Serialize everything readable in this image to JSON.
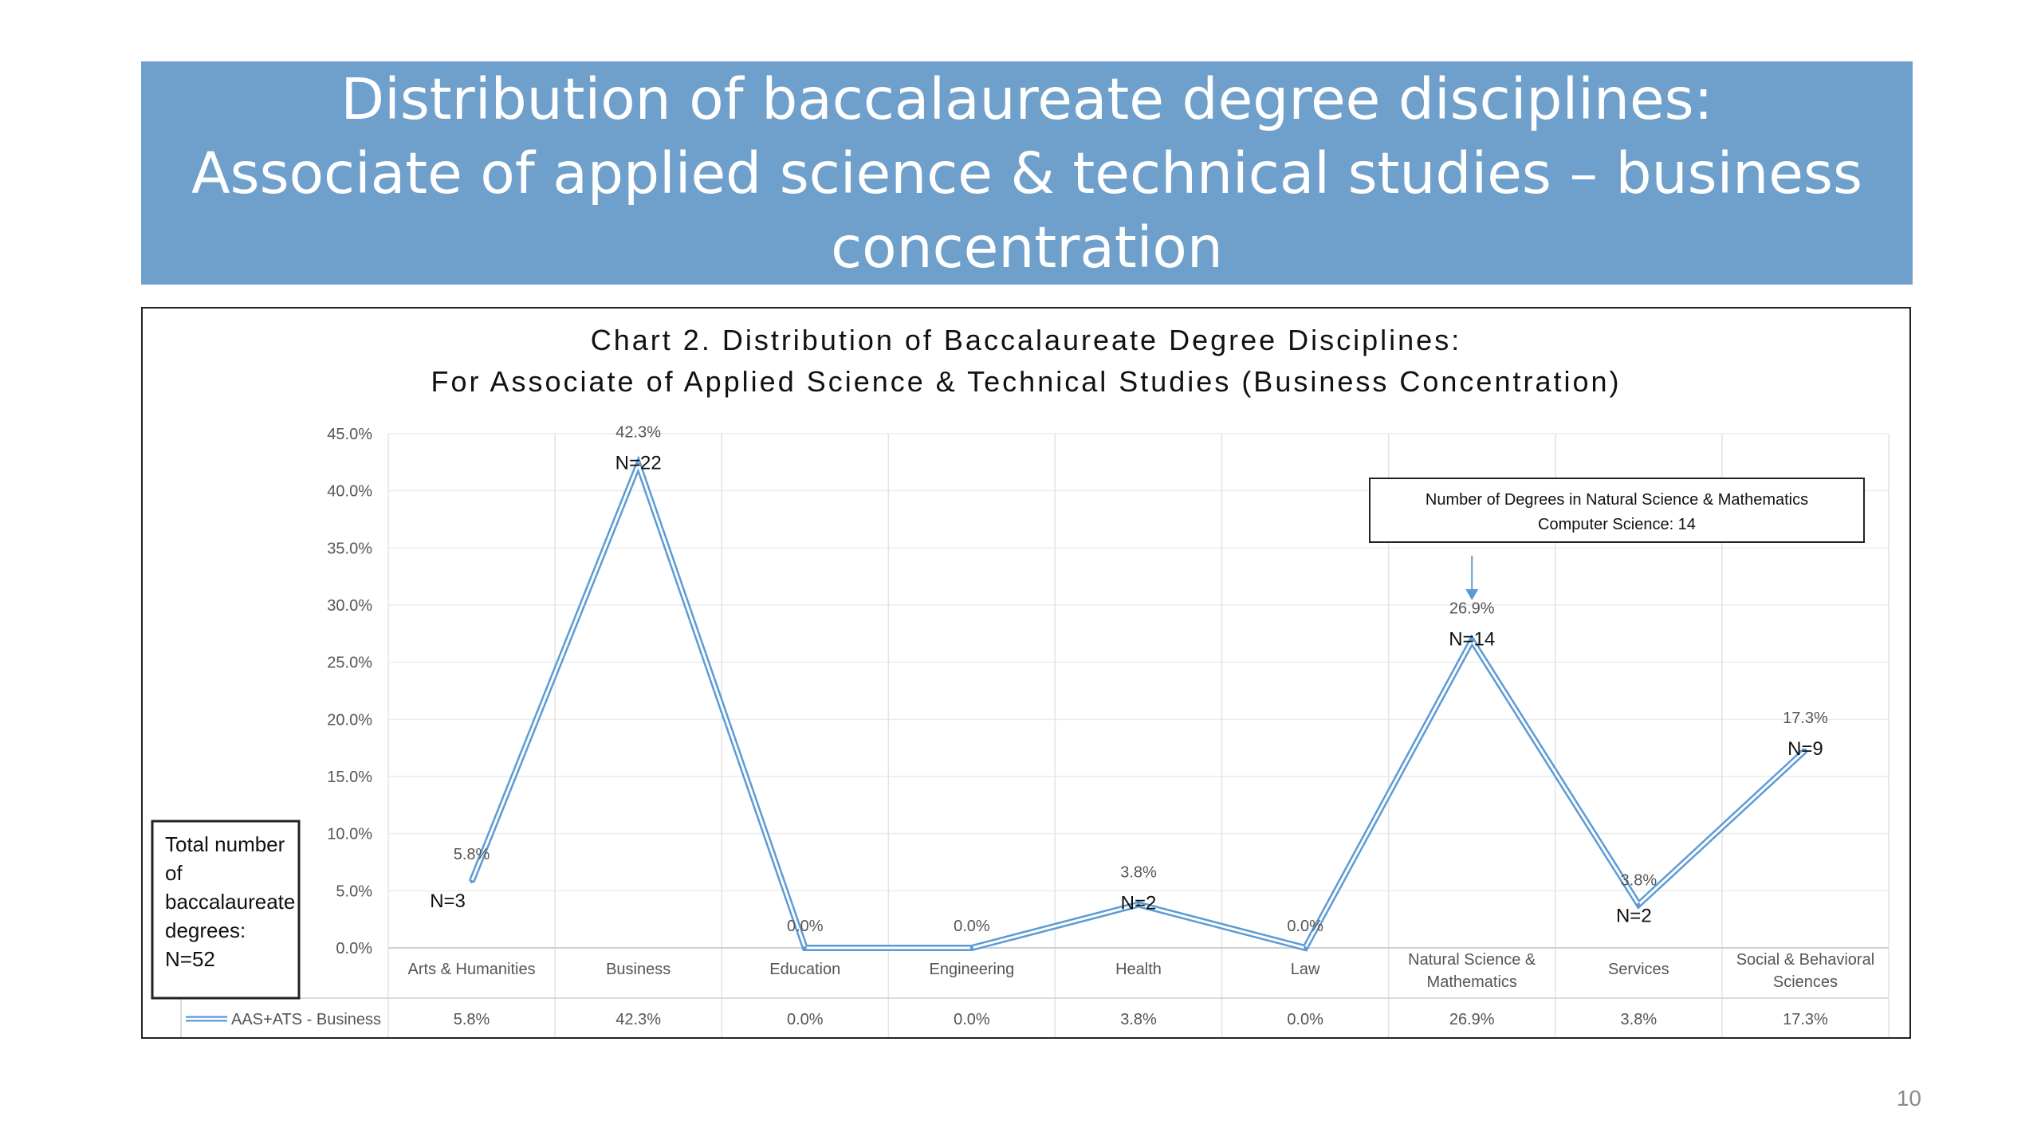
{
  "slide": {
    "title_lines": [
      "Distribution of baccalaureate degree disciplines:",
      "Associate of applied science & technical studies – business",
      "concentration"
    ],
    "page_number": "10"
  },
  "colors": {
    "banner": "#6fa0cc",
    "series_line": "#5b9bd5",
    "annotation_arrow": "#5b9bd5"
  },
  "chart_data": {
    "type": "line",
    "title_lines": [
      "Chart 2. Distribution of Baccalaureate Degree Disciplines:",
      "For Associate of Applied Science & Technical Studies (Business Concentration)"
    ],
    "categories": [
      [
        "Arts & Humanities"
      ],
      [
        "Business"
      ],
      [
        "Education"
      ],
      [
        "Engineering"
      ],
      [
        "Health"
      ],
      [
        "Law"
      ],
      [
        "Natural Science &",
        "Mathematics"
      ],
      [
        "Services"
      ],
      [
        "Social & Behavioral",
        "Sciences"
      ]
    ],
    "y_ticks": [
      "0.0%",
      "5.0%",
      "10.0%",
      "15.0%",
      "20.0%",
      "25.0%",
      "30.0%",
      "35.0%",
      "40.0%",
      "45.0%"
    ],
    "ylim": [
      0,
      45
    ],
    "grid": true,
    "series": [
      {
        "name": "AAS+ATS - Business",
        "values": [
          5.8,
          42.3,
          0.0,
          0.0,
          3.8,
          0.0,
          26.9,
          3.8,
          17.3
        ],
        "labels": [
          "5.8%",
          "42.3%",
          "0.0%",
          "0.0%",
          "3.8%",
          "0.0%",
          "26.9%",
          "3.8%",
          "17.3%"
        ],
        "counts": [
          "N=3",
          "N=22",
          "",
          "",
          "N=2",
          "",
          "N=14",
          "N=2",
          "N=9"
        ]
      }
    ],
    "data_table": true,
    "annotations": {
      "total_box_lines": [
        "Total number",
        "of",
        "baccalaureate",
        "degrees:",
        "N=52"
      ],
      "callout_lines": [
        "Number of Degrees in Natural Science & Mathematics",
        "Computer Science: 14"
      ]
    }
  }
}
